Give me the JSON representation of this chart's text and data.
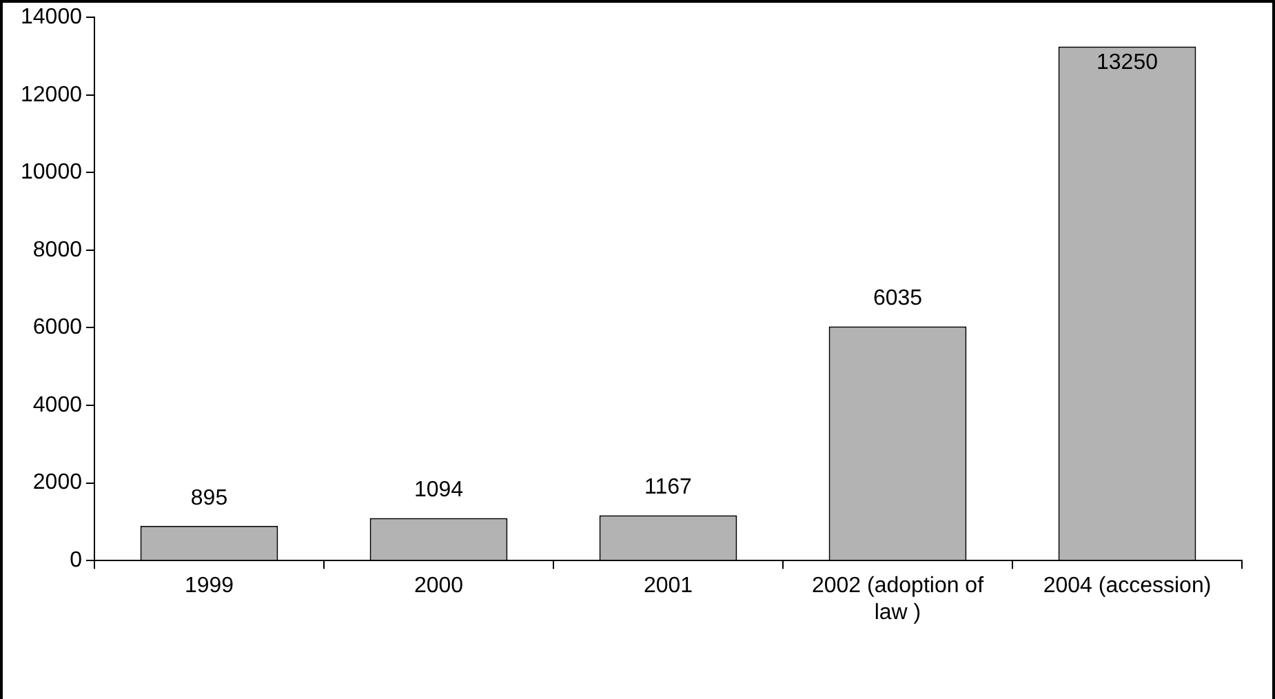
{
  "chart_data": {
    "type": "bar",
    "categories": [
      "1999",
      "2000",
      "2001",
      "2002 (adoption of law )",
      "2004 (accession)"
    ],
    "values": [
      895,
      1094,
      1167,
      6035,
      13250
    ],
    "color": "#b3b3b3",
    "ylim": [
      0,
      14000
    ],
    "yticks": [
      0,
      2000,
      4000,
      6000,
      8000,
      10000,
      12000,
      14000
    ],
    "grid": false,
    "legend": false,
    "data_labels": true
  }
}
